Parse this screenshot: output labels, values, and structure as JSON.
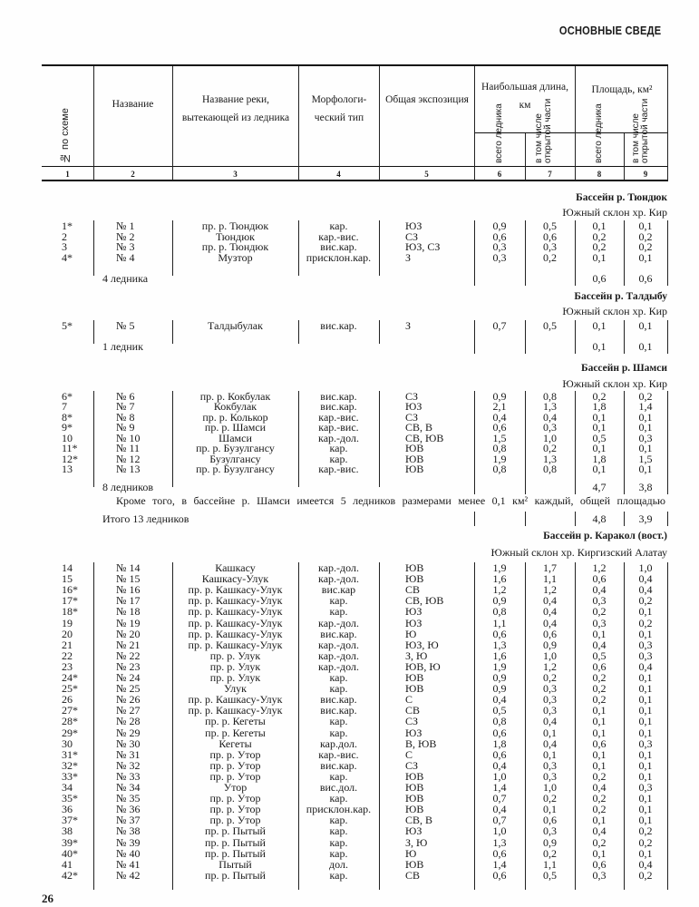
{
  "running_title": "ОСНОВНЫЕ СВЕДЕ",
  "header": {
    "col1": "№ по схеме",
    "col2": "Название",
    "col3": "Название реки, вытекающей из ледника",
    "col4": "Морфологи-ческий тип",
    "col5": "Общая экспозиция",
    "length_group": "Наибольшая длина, км",
    "area_group": "Площадь, км²",
    "sub_total": "всего ледника",
    "sub_open": "в том числе открытой части",
    "col_numbers": [
      "1",
      "2",
      "3",
      "4",
      "5",
      "6",
      "7",
      "8",
      "9"
    ]
  },
  "sections": [
    {
      "basin": "Бассейн р. Тюндюк",
      "slope": "Южный склон хр. Кир",
      "rows": [
        [
          "1*",
          "№ 1",
          "пр. р. Тюндюк",
          "кар.",
          "ЮЗ",
          "0,9",
          "0,5",
          "0,1",
          "0,1"
        ],
        [
          "2",
          "№ 2",
          "Тюндюк",
          "кар.-вис.",
          "СЗ",
          "0,6",
          "0,6",
          "0,2",
          "0,2"
        ],
        [
          "3",
          "№ 3",
          "пр. р. Тюндюк",
          "вис.кар.",
          "ЮЗ, СЗ",
          "0,3",
          "0,3",
          "0,2",
          "0,2"
        ],
        [
          "4*",
          "№ 4",
          "Музтор",
          "присклон.кар.",
          "З",
          "0,3",
          "0,2",
          "0,1",
          "0,1"
        ]
      ],
      "total": {
        "label": "4 ледника",
        "area_total": "0,6",
        "area_open": "0,6"
      }
    },
    {
      "basin": "Бассейн р. Талдыбу",
      "slope": "Южный склон хр. Кир",
      "rows": [
        [
          "5*",
          "№ 5",
          "Талдыбулак",
          "вис.кар.",
          "З",
          "0,7",
          "0,5",
          "0,1",
          "0,1"
        ]
      ],
      "total": {
        "label": "1 ледник",
        "area_total": "0,1",
        "area_open": "0,1"
      }
    },
    {
      "basin": "Бассейн р. Шамси",
      "slope": "Южный склон хр. Кир",
      "rows": [
        [
          "6*",
          "№ 6",
          "пр. р. Кокбулак",
          "вис.кар.",
          "СЗ",
          "0,9",
          "0,8",
          "0,2",
          "0,2"
        ],
        [
          "7",
          "№ 7",
          "Кокбулак",
          "вис.кар.",
          "ЮЗ",
          "2,1",
          "1,3",
          "1,8",
          "1,4"
        ],
        [
          "8*",
          "№ 8",
          "пр. р. Колькор",
          "кар.-вис.",
          "СЗ",
          "0,4",
          "0,4",
          "0,1",
          "0,1"
        ],
        [
          "9*",
          "№ 9",
          "пр. р. Шамси",
          "кар.-вис.",
          "СВ, В",
          "0,6",
          "0,3",
          "0,1",
          "0,1"
        ],
        [
          "10",
          "№ 10",
          "Шамси",
          "кар.-дол.",
          "СВ, ЮВ",
          "1,5",
          "1,0",
          "0,5",
          "0,3"
        ],
        [
          "11*",
          "№ 11",
          "пр. р. Бузулгансу",
          "кар.",
          "ЮВ",
          "0,8",
          "0,2",
          "0,1",
          "0,1"
        ],
        [
          "12*",
          "№ 12",
          "Бузулгансу",
          "кар.",
          "ЮВ",
          "1,9",
          "1,3",
          "1,8",
          "1,5"
        ],
        [
          "13",
          "№ 13",
          "пр. р. Бузулгансу",
          "кар.-вис.",
          "ЮВ",
          "0,8",
          "0,8",
          "0,1",
          "0,1"
        ]
      ],
      "total": {
        "label": "8 ледников",
        "area_total": "4,7",
        "area_open": "3,8"
      },
      "note": "Кроме того, в бассейне р. Шамси имеется 5 ледников размерами менее 0,1 км² каждый, общей площадью",
      "grand_total": {
        "label": "Итого 13 ледников",
        "area_total": "4,8",
        "area_open": "3,9"
      }
    },
    {
      "basin": "Бассейн р. Каракол (вост.)",
      "slope": "Южный склон хр. Киргизский Алатау",
      "rows": [
        [
          "14",
          "№ 14",
          "Кашкасу",
          "кар.-дол.",
          "ЮВ",
          "1,9",
          "1,7",
          "1,2",
          "1,0"
        ],
        [
          "15",
          "№ 15",
          "Кашкасу-Улук",
          "кар.-дол.",
          "ЮВ",
          "1,6",
          "1,1",
          "0,6",
          "0,4"
        ],
        [
          "16*",
          "№ 16",
          "пр. р. Кашкасу-Улук",
          "вис.кар",
          "СВ",
          "1,2",
          "1,2",
          "0,4",
          "0,4"
        ],
        [
          "17*",
          "№ 17",
          "пр. р. Кашкасу-Улук",
          "кар.",
          "СВ, ЮВ",
          "0,9",
          "0,4",
          "0,3",
          "0,2"
        ],
        [
          "18*",
          "№ 18",
          "пр. р. Кашкасу-Улук",
          "кар.",
          "ЮЗ",
          "0,8",
          "0,4",
          "0,2",
          "0,1"
        ],
        [
          "19",
          "№ 19",
          "пр. р. Кашкасу-Улук",
          "кар.-дол.",
          "ЮЗ",
          "1,1",
          "0,4",
          "0,3",
          "0,2"
        ],
        [
          "20",
          "№ 20",
          "пр. р. Кашкасу-Улук",
          "вис.кар.",
          "Ю",
          "0,6",
          "0,6",
          "0,1",
          "0,1"
        ],
        [
          "21",
          "№ 21",
          "пр. р. Кашкасу-Улук",
          "кар.-дол.",
          "ЮЗ, Ю",
          "1,3",
          "0,9",
          "0,4",
          "0,3"
        ],
        [
          "22",
          "№ 22",
          "пр. р. Улук",
          "кар.-дол.",
          "З, Ю",
          "1,6",
          "1,0",
          "0,5",
          "0,3"
        ],
        [
          "23",
          "№ 23",
          "пр. р. Улук",
          "кар.-дол.",
          "ЮВ, Ю",
          "1,9",
          "1,2",
          "0,6",
          "0,4"
        ],
        [
          "24*",
          "№ 24",
          "пр. р. Улук",
          "кар.",
          "ЮВ",
          "0,9",
          "0,2",
          "0,2",
          "0,1"
        ],
        [
          "25*",
          "№ 25",
          "Улук",
          "кар.",
          "ЮВ",
          "0,9",
          "0,3",
          "0,2",
          "0,1"
        ],
        [
          "26",
          "№ 26",
          "пр. р. Кашкасу-Улук",
          "вис.кар.",
          "С",
          "0,4",
          "0,3",
          "0,2",
          "0,1"
        ],
        [
          "27*",
          "№ 27",
          "пр. р. Кашкасу-Улук",
          "вис.кар.",
          "СВ",
          "0,5",
          "0,3",
          "0,1",
          "0,1"
        ],
        [
          "28*",
          "№ 28",
          "пр. р. Кегеты",
          "кар.",
          "СЗ",
          "0,8",
          "0,4",
          "0,1",
          "0,1"
        ],
        [
          "29*",
          "№ 29",
          "пр. р. Кегеты",
          "кар.",
          "ЮЗ",
          "0,6",
          "0,1",
          "0,1",
          "0,1"
        ],
        [
          "30",
          "№ 30",
          "Кегеты",
          "кар.дол.",
          "В, ЮВ",
          "1,8",
          "0,4",
          "0,6",
          "0,3"
        ],
        [
          "31*",
          "№ 31",
          "пр. р. Утор",
          "кар.-вис.",
          "С",
          "0,6",
          "0,1",
          "0,1",
          "0,1"
        ],
        [
          "32*",
          "№ 32",
          "пр. р. Утор",
          "вис.кар.",
          "СЗ",
          "0,4",
          "0,3",
          "0,1",
          "0,1"
        ],
        [
          "33*",
          "№ 33",
          "пр. р. Утор",
          "кар.",
          "ЮВ",
          "1,0",
          "0,3",
          "0,2",
          "0,1"
        ],
        [
          "34",
          "№ 34",
          "Утор",
          "вис.дол.",
          "ЮВ",
          "1,4",
          "1,0",
          "0,4",
          "0,3"
        ],
        [
          "35*",
          "№ 35",
          "пр. р. Утор",
          "кар.",
          "ЮВ",
          "0,7",
          "0,2",
          "0,2",
          "0,1"
        ],
        [
          "36",
          "№ 36",
          "пр. р. Утор",
          "присклон.кар.",
          "ЮВ",
          "0,4",
          "0,1",
          "0,2",
          "0,1"
        ],
        [
          "37*",
          "№ 37",
          "пр. р. Утор",
          "кар.",
          "СВ, В",
          "0,7",
          "0,6",
          "0,1",
          "0,1"
        ],
        [
          "38",
          "№ 38",
          "пр. р. Пытый",
          "кар.",
          "ЮЗ",
          "1,0",
          "0,3",
          "0,4",
          "0,2"
        ],
        [
          "39*",
          "№ 39",
          "пр. р. Пытый",
          "кар.",
          "З, Ю",
          "1,3",
          "0,9",
          "0,2",
          "0,2"
        ],
        [
          "40*",
          "№ 40",
          "пр. р. Пытый",
          "кар.",
          "Ю",
          "0,6",
          "0,2",
          "0,1",
          "0,1"
        ],
        [
          "41",
          "№ 41",
          "Пытый",
          "дол.",
          "ЮВ",
          "1,4",
          "1,1",
          "0,6",
          "0,4"
        ],
        [
          "42*",
          "№ 42",
          "пр. р. Пытый",
          "кар.",
          "СВ",
          "0,6",
          "0,5",
          "0,3",
          "0,2"
        ]
      ]
    }
  ],
  "page_number": "26"
}
